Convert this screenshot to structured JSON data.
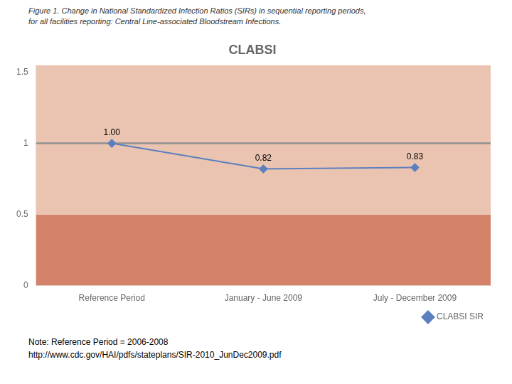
{
  "chart_data": {
    "type": "line",
    "title": "CLABSI",
    "caption": [
      "Figure 1. Change in National Standardized Infection Ratios (SIRs) in sequential reporting periods,",
      "for all facilities reporting: Central Line-associated Bloodstream Infections."
    ],
    "notes": [
      "Note: Reference Period = 2006-2008",
      "http://www.cdc.gov/HAI/pdfs/stateplans/SIR-2010_JunDec2009.pdf"
    ],
    "categories": [
      "Reference Period",
      "January - June 2009",
      "July - December 2009"
    ],
    "series": [
      {
        "name": "CLABSI SIR",
        "color": "#5B7FBF",
        "values": [
          1.0,
          0.82,
          0.83
        ],
        "value_labels": [
          "1.00",
          "0.82",
          "0.83"
        ],
        "marker": "diamond",
        "line_style": "solid"
      }
    ],
    "ylim": [
      0,
      1.55
    ],
    "yticks": [
      0,
      0.5,
      1,
      1.5
    ],
    "grid": false,
    "legend": "lower right",
    "data_labels": true,
    "reference_line": {
      "value": 1.0,
      "color": "#909090"
    },
    "bands": [
      {
        "from": 0,
        "to": 0.5,
        "color": "#D4826A"
      },
      {
        "from": 0.5,
        "to": 1.55,
        "color": "#EAC4B0"
      }
    ]
  }
}
